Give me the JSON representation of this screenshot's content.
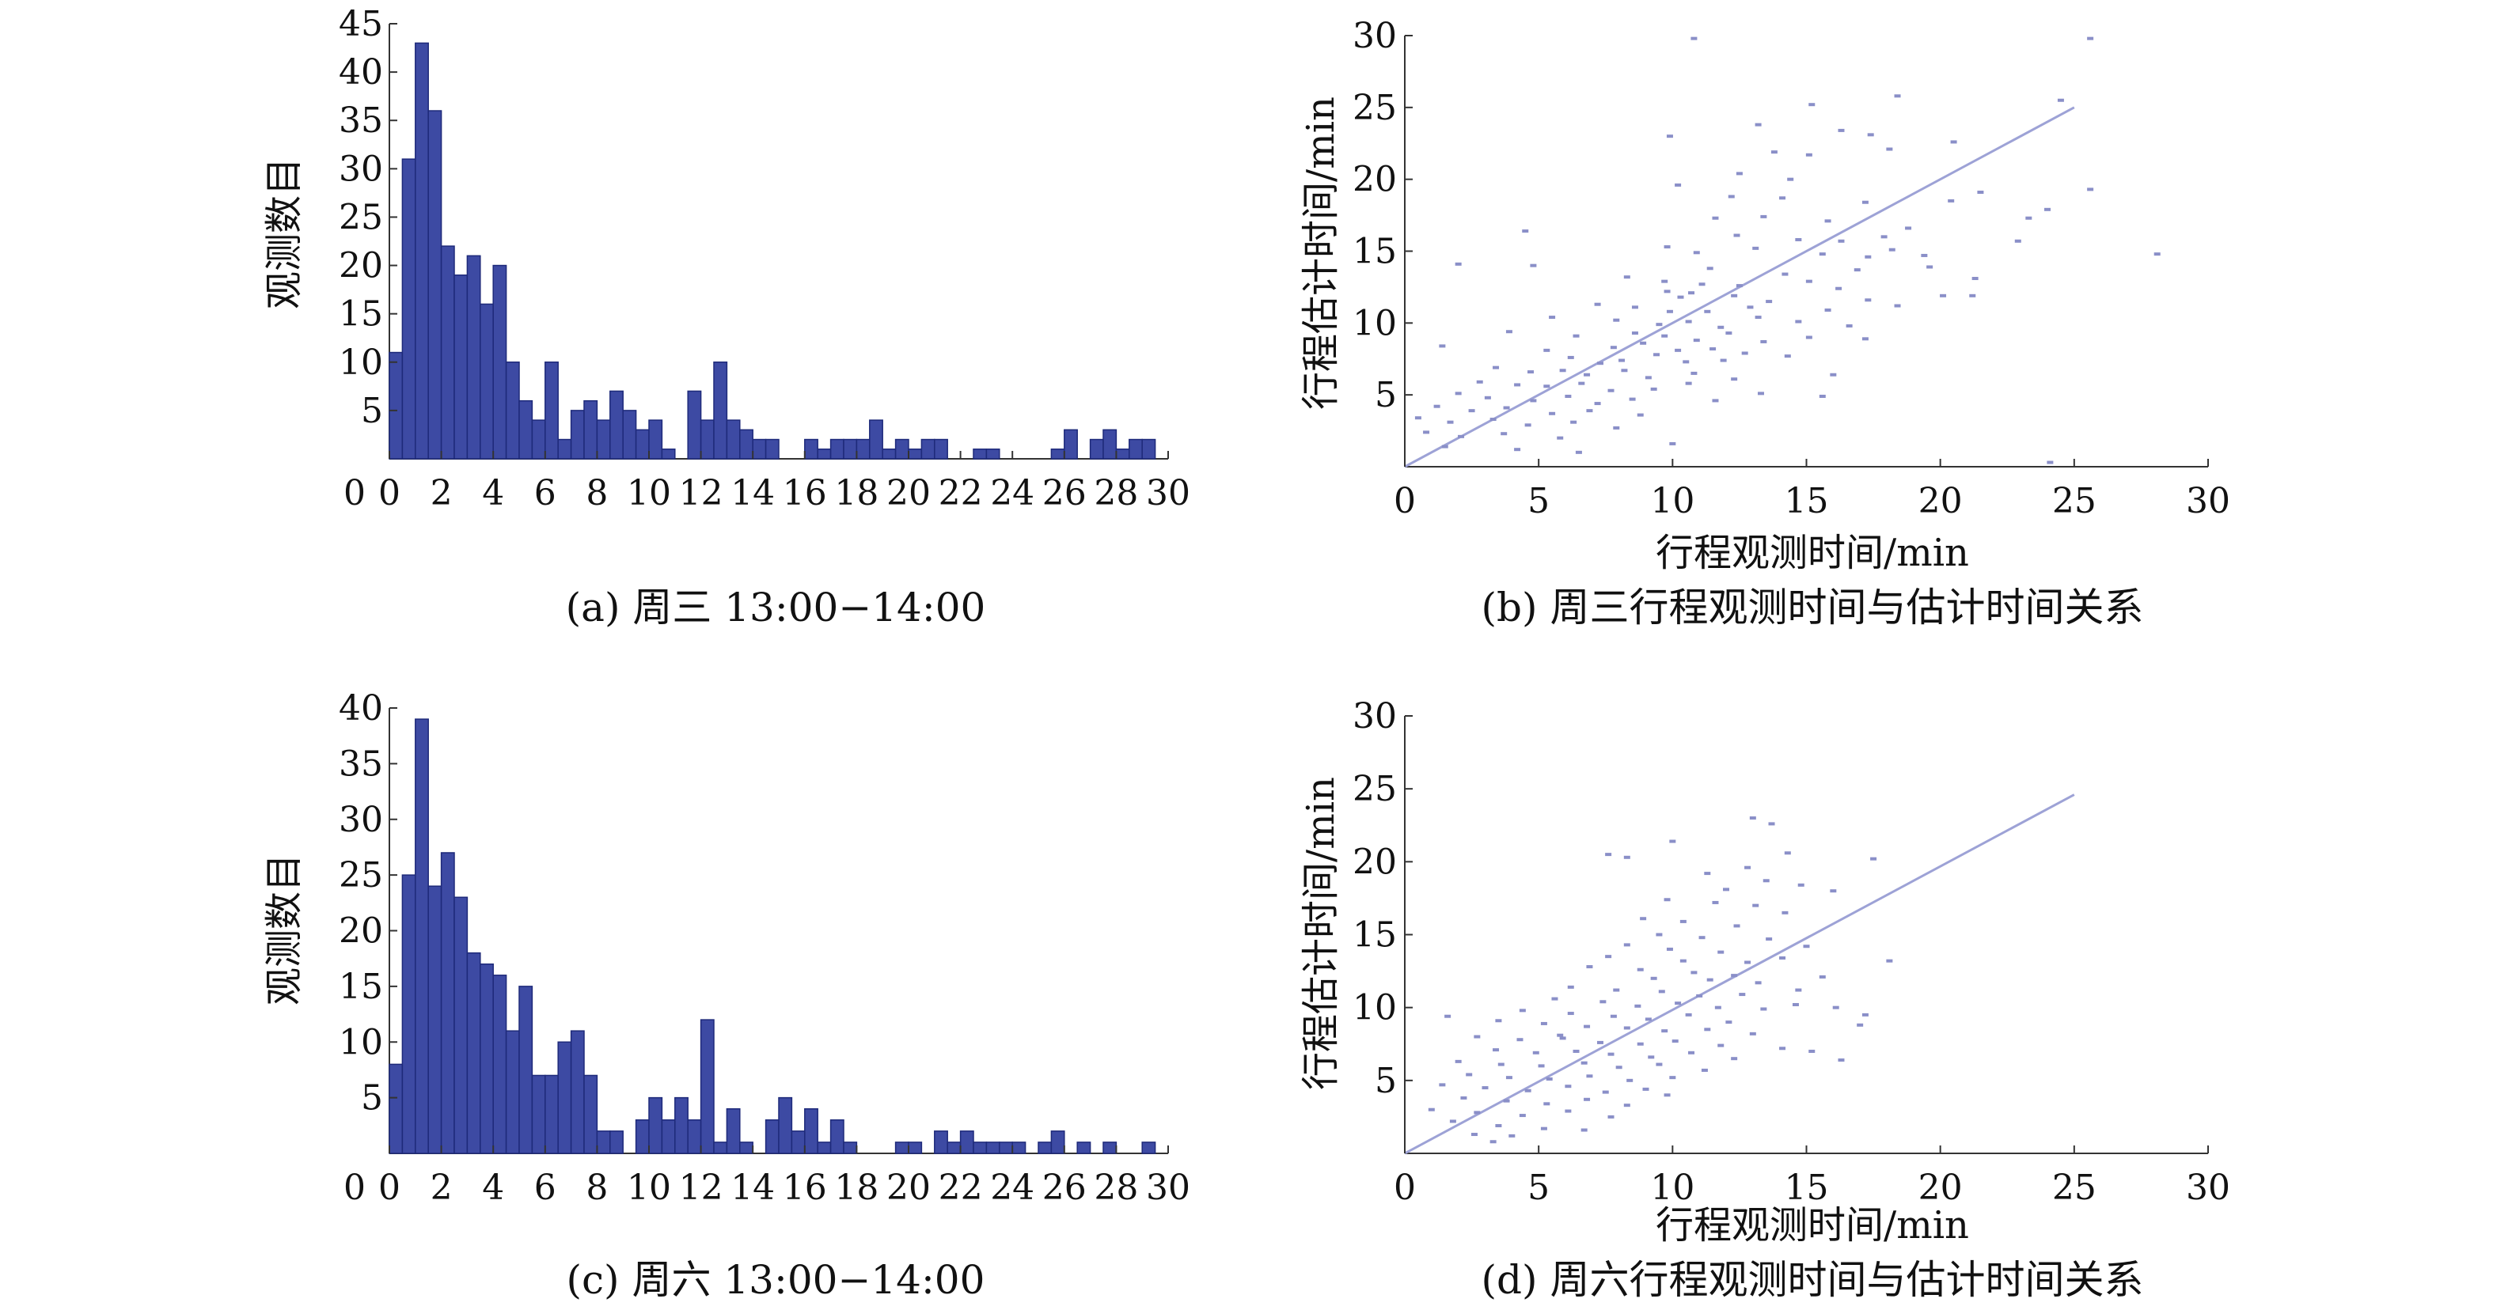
{
  "colors": {
    "bar_fill": "#3d4aa3",
    "bar_edge": "#1e2a7a",
    "point": "#8a8fc8",
    "line": "#9da2d6",
    "axis": "#333333"
  },
  "chart_data": [
    {
      "type": "bar",
      "id": "a",
      "caption": "(a) 周三 13:00−14:00",
      "title": "",
      "xlabel": "",
      "ylabel": "观测数目",
      "xlim": [
        0,
        30
      ],
      "ylim": [
        0,
        45
      ],
      "bin_width": 0.5,
      "xticks": [
        0,
        2,
        4,
        6,
        8,
        10,
        12,
        14,
        16,
        18,
        20,
        22,
        24,
        26,
        28,
        30
      ],
      "yticks": [
        5,
        10,
        15,
        20,
        25,
        30,
        35,
        40,
        45
      ],
      "values": [
        11,
        31,
        43,
        36,
        22,
        19,
        21,
        16,
        20,
        10,
        6,
        4,
        10,
        2,
        5,
        6,
        4,
        7,
        5,
        3,
        4,
        1,
        0,
        7,
        4,
        10,
        4,
        3,
        2,
        2,
        0,
        0,
        2,
        1,
        2,
        2,
        2,
        4,
        1,
        2,
        1,
        2,
        2,
        0,
        0,
        1,
        1,
        0,
        0,
        0,
        0,
        1,
        3,
        0,
        2,
        3,
        1,
        2,
        2,
        0
      ]
    },
    {
      "type": "scatter",
      "id": "b",
      "caption": "(b) 周三行程观测时间与估计时间关系",
      "title": "",
      "xlabel": "行程观测时间/min",
      "ylabel": "行程估计时间/min",
      "xlim": [
        0,
        30
      ],
      "ylim": [
        0,
        30
      ],
      "xticks": [
        0,
        5,
        10,
        15,
        20,
        25,
        30
      ],
      "yticks": [
        5,
        10,
        15,
        20,
        25,
        30
      ],
      "fit_line": [
        [
          0,
          0
        ],
        [
          25,
          25
        ]
      ],
      "points": [
        [
          10.8,
          29.8
        ],
        [
          25.6,
          29.8
        ],
        [
          15.2,
          25.2
        ],
        [
          18.4,
          25.8
        ],
        [
          24.5,
          25.5
        ],
        [
          13.2,
          23.8
        ],
        [
          9.9,
          23.0
        ],
        [
          16.3,
          23.4
        ],
        [
          17.4,
          23.1
        ],
        [
          13.8,
          21.9
        ],
        [
          20.5,
          22.6
        ],
        [
          15.1,
          21.7
        ],
        [
          18.1,
          22.1
        ],
        [
          12.5,
          20.4
        ],
        [
          14.4,
          20.0
        ],
        [
          10.2,
          19.6
        ],
        [
          21.5,
          19.1
        ],
        [
          25.6,
          19.3
        ],
        [
          12.2,
          18.8
        ],
        [
          14.1,
          18.7
        ],
        [
          17.2,
          18.4
        ],
        [
          20.4,
          18.5
        ],
        [
          24.0,
          17.9
        ],
        [
          11.6,
          17.3
        ],
        [
          13.4,
          17.4
        ],
        [
          15.8,
          17.1
        ],
        [
          18.8,
          16.6
        ],
        [
          23.3,
          17.3
        ],
        [
          4.5,
          16.4
        ],
        [
          12.4,
          16.1
        ],
        [
          14.7,
          15.8
        ],
        [
          16.3,
          15.7
        ],
        [
          17.9,
          16.0
        ],
        [
          22.9,
          15.7
        ],
        [
          28.1,
          14.8
        ],
        [
          9.8,
          15.3
        ],
        [
          10.9,
          14.9
        ],
        [
          13.1,
          15.2
        ],
        [
          15.6,
          14.8
        ],
        [
          17.3,
          14.6
        ],
        [
          18.2,
          15.1
        ],
        [
          19.4,
          14.7
        ],
        [
          2.0,
          14.1
        ],
        [
          4.8,
          14.0
        ],
        [
          11.4,
          13.8
        ],
        [
          14.2,
          13.4
        ],
        [
          16.9,
          13.7
        ],
        [
          19.6,
          13.9
        ],
        [
          8.3,
          13.2
        ],
        [
          9.7,
          12.9
        ],
        [
          11.1,
          12.7
        ],
        [
          12.5,
          12.6
        ],
        [
          15.1,
          12.9
        ],
        [
          16.2,
          12.4
        ],
        [
          21.3,
          13.1
        ],
        [
          9.8,
          12.2
        ],
        [
          10.3,
          11.8
        ],
        [
          10.7,
          12.1
        ],
        [
          12.3,
          11.9
        ],
        [
          13.6,
          11.5
        ],
        [
          17.3,
          11.6
        ],
        [
          20.1,
          11.9
        ],
        [
          21.2,
          11.9
        ],
        [
          7.2,
          11.3
        ],
        [
          8.6,
          11.1
        ],
        [
          9.9,
          10.8
        ],
        [
          11.3,
          10.8
        ],
        [
          12.9,
          11.1
        ],
        [
          15.8,
          10.9
        ],
        [
          18.4,
          11.2
        ],
        [
          5.5,
          10.4
        ],
        [
          7.9,
          10.2
        ],
        [
          9.5,
          9.9
        ],
        [
          10.6,
          10.1
        ],
        [
          11.8,
          9.7
        ],
        [
          13.2,
          10.4
        ],
        [
          14.7,
          10.1
        ],
        [
          16.6,
          9.8
        ],
        [
          3.9,
          9.4
        ],
        [
          6.4,
          9.1
        ],
        [
          8.6,
          9.3
        ],
        [
          9.7,
          9.1
        ],
        [
          10.9,
          8.8
        ],
        [
          12.1,
          9.3
        ],
        [
          13.4,
          8.7
        ],
        [
          15.1,
          9.0
        ],
        [
          17.2,
          8.9
        ],
        [
          1.4,
          8.4
        ],
        [
          5.3,
          8.1
        ],
        [
          7.8,
          8.3
        ],
        [
          8.9,
          8.6
        ],
        [
          10.2,
          8.1
        ],
        [
          11.5,
          8.2
        ],
        [
          12.7,
          7.9
        ],
        [
          6.2,
          7.6
        ],
        [
          7.3,
          7.2
        ],
        [
          8.1,
          7.4
        ],
        [
          9.4,
          7.8
        ],
        [
          10.5,
          7.3
        ],
        [
          11.9,
          7.4
        ],
        [
          14.3,
          7.7
        ],
        [
          3.4,
          6.9
        ],
        [
          4.7,
          6.6
        ],
        [
          5.9,
          6.7
        ],
        [
          6.8,
          6.4
        ],
        [
          8.2,
          6.7
        ],
        [
          9.1,
          6.2
        ],
        [
          10.8,
          6.5
        ],
        [
          12.3,
          6.1
        ],
        [
          16.0,
          6.4
        ],
        [
          2.8,
          5.9
        ],
        [
          4.2,
          5.7
        ],
        [
          5.3,
          5.6
        ],
        [
          6.6,
          5.8
        ],
        [
          7.7,
          5.3
        ],
        [
          9.3,
          5.4
        ],
        [
          10.6,
          5.8
        ],
        [
          13.3,
          5.1
        ],
        [
          2.0,
          5.1
        ],
        [
          3.1,
          4.8
        ],
        [
          4.8,
          4.6
        ],
        [
          6.1,
          4.9
        ],
        [
          7.2,
          4.4
        ],
        [
          8.5,
          4.7
        ],
        [
          11.6,
          4.6
        ],
        [
          15.6,
          4.9
        ],
        [
          1.2,
          4.2
        ],
        [
          2.5,
          3.9
        ],
        [
          3.8,
          4.1
        ],
        [
          5.5,
          3.7
        ],
        [
          6.9,
          3.9
        ],
        [
          8.8,
          3.6
        ],
        [
          0.5,
          3.4
        ],
        [
          1.7,
          3.1
        ],
        [
          3.3,
          3.3
        ],
        [
          4.6,
          2.9
        ],
        [
          6.3,
          3.1
        ],
        [
          7.9,
          2.7
        ],
        [
          0.8,
          2.4
        ],
        [
          2.1,
          2.1
        ],
        [
          3.7,
          2.3
        ],
        [
          5.8,
          2.0
        ],
        [
          1.5,
          1.4
        ],
        [
          4.2,
          1.2
        ],
        [
          10.0,
          1.6
        ],
        [
          6.5,
          1.0
        ],
        [
          24.1,
          0.3
        ]
      ]
    },
    {
      "type": "bar",
      "id": "c",
      "caption": "(c) 周六 13:00−14:00",
      "title": "",
      "xlabel": "",
      "ylabel": "观测数目",
      "xlim": [
        0,
        30
      ],
      "ylim": [
        0,
        40
      ],
      "bin_width": 0.5,
      "xticks": [
        0,
        2,
        4,
        6,
        8,
        10,
        12,
        14,
        16,
        18,
        20,
        22,
        24,
        26,
        28,
        30
      ],
      "yticks": [
        5,
        10,
        15,
        20,
        25,
        30,
        35,
        40
      ],
      "values": [
        8,
        25,
        39,
        24,
        27,
        23,
        18,
        17,
        16,
        11,
        15,
        7,
        7,
        10,
        11,
        7,
        2,
        2,
        0,
        3,
        5,
        3,
        5,
        3,
        12,
        1,
        4,
        1,
        0,
        3,
        5,
        2,
        4,
        1,
        3,
        1,
        0,
        0,
        0,
        1,
        1,
        0,
        2,
        1,
        2,
        1,
        1,
        1,
        1,
        0,
        1,
        2,
        0,
        1,
        0,
        1,
        0,
        0,
        1,
        0
      ]
    },
    {
      "type": "scatter",
      "id": "d",
      "caption": "(d) 周六行程观测时间与估计时间关系",
      "title": "",
      "xlabel": "行程观测时间/min",
      "ylabel": "行程估计时间/min",
      "xlim": [
        0,
        30
      ],
      "ylim": [
        0,
        30
      ],
      "xticks": [
        0,
        5,
        10,
        15,
        20,
        25,
        30
      ],
      "yticks": [
        5,
        10,
        15,
        20,
        25,
        30
      ],
      "fit_line": [
        [
          0,
          0
        ],
        [
          25,
          24.6
        ]
      ],
      "points": [
        [
          13.0,
          23.0
        ],
        [
          13.7,
          22.6
        ],
        [
          10.0,
          21.4
        ],
        [
          7.6,
          20.5
        ],
        [
          8.3,
          20.3
        ],
        [
          14.3,
          20.6
        ],
        [
          17.5,
          20.2
        ],
        [
          12.8,
          19.6
        ],
        [
          11.3,
          19.2
        ],
        [
          13.5,
          18.7
        ],
        [
          14.8,
          18.4
        ],
        [
          16.0,
          18.0
        ],
        [
          12.0,
          18.1
        ],
        [
          9.8,
          17.4
        ],
        [
          11.6,
          17.2
        ],
        [
          13.1,
          17.0
        ],
        [
          14.2,
          16.5
        ],
        [
          8.9,
          16.1
        ],
        [
          10.4,
          15.9
        ],
        [
          12.4,
          15.6
        ],
        [
          9.5,
          15.0
        ],
        [
          11.1,
          14.8
        ],
        [
          13.6,
          14.7
        ],
        [
          15.0,
          14.2
        ],
        [
          8.3,
          14.3
        ],
        [
          9.9,
          14.0
        ],
        [
          11.8,
          13.8
        ],
        [
          7.6,
          13.5
        ],
        [
          10.4,
          13.2
        ],
        [
          12.8,
          13.1
        ],
        [
          14.1,
          13.4
        ],
        [
          18.1,
          13.2
        ],
        [
          6.9,
          12.8
        ],
        [
          8.8,
          12.6
        ],
        [
          10.8,
          12.4
        ],
        [
          12.3,
          12.2
        ],
        [
          9.3,
          12.0
        ],
        [
          11.4,
          11.9
        ],
        [
          13.2,
          11.7
        ],
        [
          6.2,
          11.4
        ],
        [
          7.9,
          11.2
        ],
        [
          9.6,
          11.1
        ],
        [
          11.0,
          10.8
        ],
        [
          12.6,
          10.9
        ],
        [
          14.7,
          11.2
        ],
        [
          5.6,
          10.6
        ],
        [
          7.4,
          10.4
        ],
        [
          8.7,
          10.1
        ],
        [
          10.2,
          10.3
        ],
        [
          11.7,
          10.0
        ],
        [
          13.4,
          9.9
        ],
        [
          14.6,
          10.2
        ],
        [
          16.1,
          10.0
        ],
        [
          17.2,
          9.5
        ],
        [
          4.4,
          9.8
        ],
        [
          6.2,
          9.6
        ],
        [
          7.8,
          9.4
        ],
        [
          9.1,
          9.2
        ],
        [
          10.6,
          9.5
        ],
        [
          12.1,
          9.0
        ],
        [
          1.6,
          9.4
        ],
        [
          3.5,
          9.1
        ],
        [
          5.2,
          8.9
        ],
        [
          6.8,
          8.7
        ],
        [
          8.3,
          8.6
        ],
        [
          9.7,
          8.4
        ],
        [
          11.3,
          8.5
        ],
        [
          13.0,
          8.2
        ],
        [
          2.7,
          8.0
        ],
        [
          4.3,
          7.8
        ],
        [
          5.9,
          7.9
        ],
        [
          7.3,
          7.6
        ],
        [
          8.8,
          7.5
        ],
        [
          10.1,
          7.7
        ],
        [
          11.8,
          7.4
        ],
        [
          3.4,
          7.1
        ],
        [
          4.9,
          6.9
        ],
        [
          6.4,
          7.0
        ],
        [
          7.7,
          6.8
        ],
        [
          9.2,
          6.6
        ],
        [
          10.7,
          6.9
        ],
        [
          12.3,
          6.5
        ],
        [
          2.0,
          6.3
        ],
        [
          3.6,
          6.1
        ],
        [
          5.1,
          6.0
        ],
        [
          6.7,
          6.2
        ],
        [
          8.0,
          5.9
        ],
        [
          9.5,
          6.1
        ],
        [
          11.2,
          5.7
        ],
        [
          14.1,
          7.2
        ],
        [
          15.2,
          7.0
        ],
        [
          2.4,
          5.4
        ],
        [
          3.9,
          5.2
        ],
        [
          5.4,
          5.1
        ],
        [
          6.9,
          5.3
        ],
        [
          8.4,
          5.0
        ],
        [
          10.0,
          5.2
        ],
        [
          1.4,
          4.7
        ],
        [
          3.0,
          4.5
        ],
        [
          4.6,
          4.3
        ],
        [
          6.1,
          4.6
        ],
        [
          7.5,
          4.2
        ],
        [
          9.0,
          4.4
        ],
        [
          2.2,
          3.8
        ],
        [
          3.8,
          3.6
        ],
        [
          5.3,
          3.4
        ],
        [
          6.8,
          3.7
        ],
        [
          8.3,
          3.3
        ],
        [
          1.0,
          3.0
        ],
        [
          2.7,
          2.8
        ],
        [
          4.4,
          2.6
        ],
        [
          6.1,
          2.9
        ],
        [
          7.7,
          2.5
        ],
        [
          1.8,
          2.2
        ],
        [
          3.5,
          1.9
        ],
        [
          5.2,
          1.7
        ],
        [
          6.7,
          1.6
        ],
        [
          2.6,
          1.3
        ],
        [
          4.0,
          1.2
        ],
        [
          3.3,
          0.8
        ],
        [
          16.3,
          6.4
        ],
        [
          17.0,
          8.8
        ],
        [
          15.6,
          12.1
        ],
        [
          9.8,
          4.0
        ],
        [
          5.8,
          8.1
        ]
      ]
    }
  ]
}
